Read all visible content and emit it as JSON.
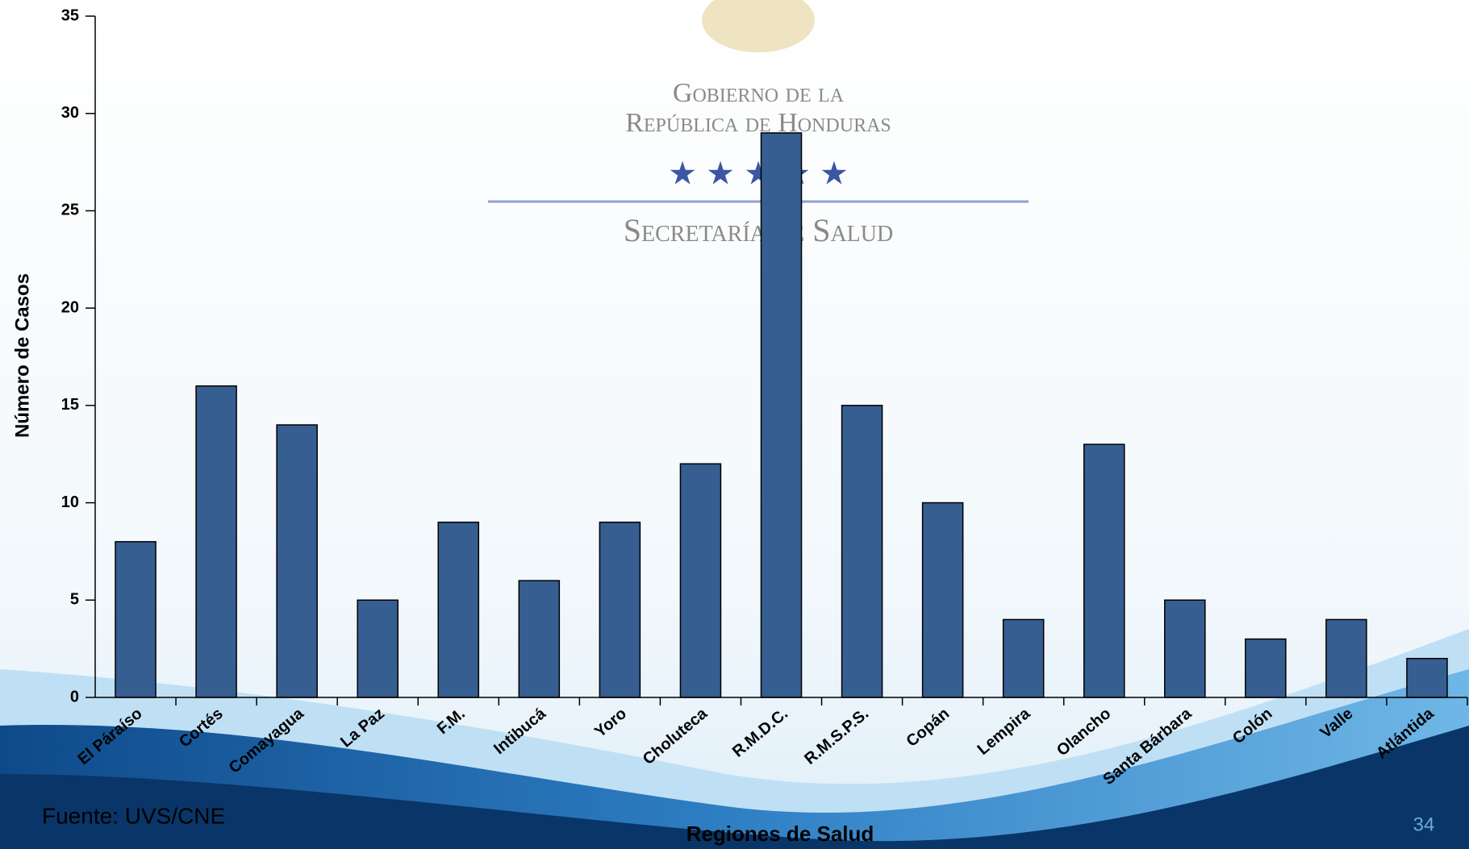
{
  "logo": {
    "line1": "Gobierno de la",
    "line2": "República de Honduras",
    "line3": "Secretaría de Salud"
  },
  "chart_data": {
    "type": "bar",
    "categories": [
      "El Páraíso",
      "Cortés",
      "Comayagua",
      "La Paz",
      "F.M.",
      "Intibucá",
      "Yoro",
      "Choluteca",
      "R.M.D.C.",
      "R.M.S.P.S.",
      "Copán",
      "Lempira",
      "Olancho",
      "Santa Bárbara",
      "Colón",
      "Valle",
      "Atlántida"
    ],
    "values": [
      8,
      16,
      14,
      5,
      9,
      6,
      9,
      12,
      29,
      15,
      10,
      4,
      13,
      5,
      3,
      4,
      2
    ],
    "color": "#365e91",
    "ylim": [
      0,
      35
    ],
    "yticks": [
      0,
      5,
      10,
      15,
      20,
      25,
      30,
      35
    ],
    "y_label": "Número de Casos",
    "x_label": "Regiones de Salud",
    "source": "Fuente: UVS/CNE",
    "page_number": "34"
  }
}
